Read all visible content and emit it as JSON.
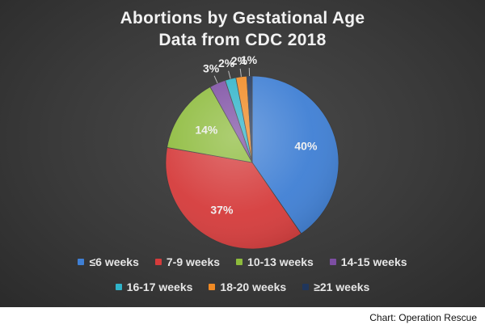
{
  "header": {
    "title_line1": "Abortions by Gestational Age",
    "title_line2": "Data from CDC 2018"
  },
  "source": "Chart: Operation Rescue",
  "colors": {
    "background": "#3a3a3a",
    "text": "#f2f2f2"
  },
  "chart_data": {
    "type": "pie",
    "title": "Abortions by Gestational Age Data from CDC 2018",
    "categories": [
      "≤6 weeks",
      "7-9 weeks",
      "10-13 weeks",
      "14-15 weeks",
      "16-17 weeks",
      "18-20 weeks",
      "≥21 weeks"
    ],
    "values": [
      40,
      37,
      14,
      3,
      2,
      2,
      1
    ],
    "labels": [
      "40%",
      "37%",
      "14%",
      "3%",
      "2%",
      "2%",
      "1%"
    ],
    "colors": [
      "#3f7fd4",
      "#d53b3b",
      "#8dbb3c",
      "#7d4ea3",
      "#2fb3c9",
      "#f08a24",
      "#20365c"
    ],
    "legend_position": "bottom",
    "start_angle_deg": 0,
    "direction": "clockwise"
  }
}
